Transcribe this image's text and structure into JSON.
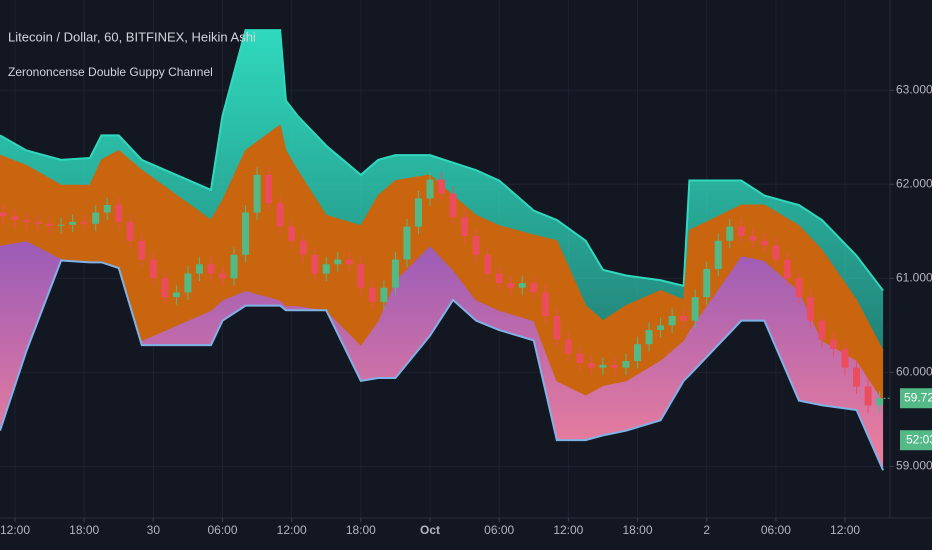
{
  "chart_data": {
    "type": "candlestick",
    "title": "Litecoin / Dollar, 60, BITFINEX, Heikin Ashi",
    "subtitle": "Zerononcense Double Guppy Channel",
    "up_color": "#53b987",
    "down_color": "#eb4d5c",
    "grid": true,
    "xlim": [
      -1.3,
      75.9
    ],
    "ylim": [
      58.43,
      63.96
    ],
    "yticks": [
      {
        "value": 63,
        "label": "63.000"
      },
      {
        "value": 62,
        "label": "62.000"
      },
      {
        "value": 61,
        "label": "61.000"
      },
      {
        "value": 60,
        "label": "60.000"
      },
      {
        "value": 59,
        "label": "59.000"
      }
    ],
    "xticks": [
      {
        "value": 0,
        "label": "12:00"
      },
      {
        "value": 6,
        "label": "18:00"
      },
      {
        "value": 12,
        "label": "30"
      },
      {
        "value": 18,
        "label": "06:00"
      },
      {
        "value": 24,
        "label": "12:00"
      },
      {
        "value": 30,
        "label": "18:00"
      },
      {
        "value": 36,
        "label": "Oct"
      },
      {
        "value": 42,
        "label": "06:00"
      },
      {
        "value": 48,
        "label": "12:00"
      },
      {
        "value": 54,
        "label": "18:00"
      },
      {
        "value": 60,
        "label": "2"
      },
      {
        "value": 66,
        "label": "06:00"
      },
      {
        "value": 72,
        "label": "12:00"
      }
    ],
    "last_price": 59.725,
    "countdown": "52:03",
    "x": [
      -1,
      0,
      1,
      2,
      3,
      4,
      5,
      6,
      7,
      8,
      9,
      10,
      11,
      12,
      13,
      14,
      15,
      16,
      17,
      18,
      19,
      20,
      21,
      22,
      23,
      24,
      25,
      26,
      27,
      28,
      29,
      30,
      31,
      32,
      33,
      34,
      35,
      36,
      37,
      38,
      39,
      40,
      41,
      42,
      43,
      44,
      45,
      46,
      47,
      48,
      49,
      50,
      51,
      52,
      53,
      54,
      55,
      56,
      57,
      58,
      59,
      60,
      61,
      62,
      63,
      64,
      65,
      66,
      67,
      68,
      69,
      70,
      71,
      72,
      73,
      74,
      75
    ],
    "ohlc": [
      [
        61.7,
        61.78,
        61.58,
        61.66
      ],
      [
        61.66,
        61.74,
        61.54,
        61.62
      ],
      [
        61.62,
        61.7,
        61.52,
        61.6
      ],
      [
        61.6,
        61.68,
        61.5,
        61.58
      ],
      [
        61.58,
        61.66,
        61.48,
        61.56
      ],
      [
        61.56,
        61.65,
        61.48,
        61.57
      ],
      [
        61.57,
        61.68,
        61.49,
        61.6
      ],
      [
        61.6,
        61.68,
        61.5,
        61.58
      ],
      [
        61.58,
        61.78,
        61.5,
        61.7
      ],
      [
        61.7,
        61.86,
        61.62,
        61.78
      ],
      [
        61.78,
        61.86,
        61.52,
        61.6
      ],
      [
        61.6,
        61.68,
        61.32,
        61.4
      ],
      [
        61.4,
        61.48,
        61.12,
        61.2
      ],
      [
        61.2,
        61.28,
        60.92,
        61.0
      ],
      [
        61.0,
        61.08,
        60.72,
        60.8
      ],
      [
        60.8,
        60.93,
        60.72,
        60.85
      ],
      [
        60.85,
        61.13,
        60.77,
        61.05
      ],
      [
        61.05,
        61.23,
        60.97,
        61.15
      ],
      [
        61.15,
        61.23,
        60.97,
        61.05
      ],
      [
        61.05,
        61.13,
        60.92,
        61.0
      ],
      [
        61.0,
        61.33,
        60.92,
        61.25
      ],
      [
        61.25,
        61.78,
        61.17,
        61.7
      ],
      [
        61.7,
        62.18,
        61.62,
        62.1
      ],
      [
        62.1,
        62.18,
        61.72,
        61.8
      ],
      [
        61.8,
        61.88,
        61.47,
        61.55
      ],
      [
        61.55,
        61.63,
        61.32,
        61.4
      ],
      [
        61.4,
        61.48,
        61.17,
        61.25
      ],
      [
        61.25,
        61.33,
        60.97,
        61.05
      ],
      [
        61.05,
        61.23,
        60.97,
        61.15
      ],
      [
        61.15,
        61.28,
        61.07,
        61.2
      ],
      [
        61.2,
        61.28,
        61.07,
        61.15
      ],
      [
        61.15,
        61.23,
        60.82,
        60.9
      ],
      [
        60.9,
        60.98,
        60.67,
        60.75
      ],
      [
        60.75,
        60.98,
        60.67,
        60.9
      ],
      [
        60.9,
        61.28,
        60.82,
        61.2
      ],
      [
        61.2,
        61.63,
        61.12,
        61.55
      ],
      [
        61.55,
        61.93,
        61.47,
        61.85
      ],
      [
        61.85,
        62.13,
        61.77,
        62.05
      ],
      [
        62.05,
        62.13,
        61.82,
        61.9
      ],
      [
        61.9,
        61.98,
        61.57,
        61.65
      ],
      [
        61.65,
        61.73,
        61.37,
        61.45
      ],
      [
        61.45,
        61.53,
        61.17,
        61.25
      ],
      [
        61.25,
        61.33,
        60.97,
        61.05
      ],
      [
        61.05,
        61.13,
        60.87,
        60.95
      ],
      [
        60.95,
        61.03,
        60.82,
        60.9
      ],
      [
        60.9,
        61.03,
        60.82,
        60.95
      ],
      [
        60.95,
        61.03,
        60.77,
        60.85
      ],
      [
        60.85,
        60.93,
        60.52,
        60.6
      ],
      [
        60.6,
        60.68,
        60.27,
        60.35
      ],
      [
        60.35,
        60.43,
        60.12,
        60.2
      ],
      [
        60.2,
        60.28,
        60.02,
        60.1
      ],
      [
        60.1,
        60.18,
        59.97,
        60.05
      ],
      [
        60.05,
        60.16,
        59.97,
        60.08
      ],
      [
        60.08,
        60.16,
        59.97,
        60.05
      ],
      [
        60.05,
        60.2,
        59.97,
        60.12
      ],
      [
        60.12,
        60.38,
        60.04,
        60.3
      ],
      [
        60.3,
        60.53,
        60.22,
        60.45
      ],
      [
        60.45,
        60.58,
        60.37,
        60.5
      ],
      [
        60.5,
        60.68,
        60.42,
        60.6
      ],
      [
        60.6,
        60.68,
        60.47,
        60.55
      ],
      [
        60.55,
        60.88,
        60.47,
        60.8
      ],
      [
        60.8,
        61.18,
        60.72,
        61.1
      ],
      [
        61.1,
        61.48,
        61.02,
        61.4
      ],
      [
        61.4,
        61.63,
        61.32,
        61.55
      ],
      [
        61.55,
        61.63,
        61.37,
        61.45
      ],
      [
        61.45,
        61.53,
        61.32,
        61.4
      ],
      [
        61.4,
        61.48,
        61.27,
        61.35
      ],
      [
        61.35,
        61.43,
        61.12,
        61.2
      ],
      [
        61.2,
        61.28,
        60.92,
        61.0
      ],
      [
        61.0,
        61.08,
        60.72,
        60.8
      ],
      [
        60.8,
        60.88,
        60.47,
        60.55
      ],
      [
        60.55,
        60.63,
        60.27,
        60.35
      ],
      [
        60.35,
        60.43,
        60.17,
        60.25
      ],
      [
        60.25,
        60.33,
        59.97,
        60.05
      ],
      [
        60.05,
        60.13,
        59.77,
        59.85
      ],
      [
        59.85,
        59.93,
        59.57,
        59.65
      ],
      [
        59.65,
        59.8,
        59.57,
        59.725
      ]
    ],
    "bands": {
      "x": [
        -1.3,
        1,
        4,
        6.5,
        7.5,
        9,
        11,
        17,
        18,
        20,
        23,
        23.5,
        24.5,
        27,
        30,
        31.5,
        33,
        36,
        38,
        40,
        42,
        45,
        47,
        49.5,
        51,
        53,
        56,
        58,
        58.5,
        63,
        65,
        68,
        70,
        73,
        75.3
      ],
      "upper": [
        62.52,
        62.36,
        62.26,
        62.28,
        62.52,
        62.52,
        62.26,
        61.94,
        62.73,
        63.64,
        63.64,
        62.89,
        62.73,
        62.41,
        62.1,
        62.26,
        62.31,
        62.31,
        62.23,
        62.15,
        62.04,
        61.72,
        61.62,
        61.4,
        61.09,
        61.03,
        60.98,
        60.92,
        62.04,
        62.04,
        61.88,
        61.78,
        61.62,
        61.24,
        60.87
      ],
      "orange_top": [
        62.31,
        62.2,
        61.99,
        61.99,
        62.26,
        62.36,
        62.15,
        61.62,
        61.83,
        62.36,
        62.63,
        62.36,
        62.15,
        61.67,
        61.56,
        61.88,
        62.04,
        62.1,
        61.88,
        61.67,
        61.56,
        61.46,
        61.4,
        60.71,
        60.55,
        60.71,
        60.87,
        60.77,
        61.51,
        61.78,
        61.78,
        61.56,
        61.3,
        60.77,
        60.23
      ],
      "orange_bottom": [
        61.35,
        61.4,
        61.21,
        61.17,
        61.17,
        61.11,
        60.34,
        60.66,
        60.77,
        60.87,
        60.77,
        60.71,
        60.71,
        60.66,
        60.29,
        60.55,
        60.98,
        61.35,
        61.09,
        60.77,
        60.66,
        60.55,
        59.91,
        59.76,
        59.86,
        59.91,
        60.13,
        60.34,
        60.45,
        61.24,
        61.19,
        60.87,
        60.34,
        60.13,
        59.7
      ],
      "lower": [
        59.38,
        60.23,
        61.19,
        61.17,
        61.17,
        61.11,
        60.29,
        60.29,
        60.55,
        60.71,
        60.71,
        60.66,
        60.66,
        60.66,
        59.91,
        59.94,
        59.94,
        60.39,
        60.77,
        60.55,
        60.45,
        60.34,
        59.28,
        59.28,
        59.33,
        59.38,
        59.49,
        59.91,
        59.97,
        60.55,
        60.55,
        59.7,
        59.65,
        59.6,
        58.96
      ],
      "upper_color": "#2fd9bd",
      "orange_color": "#c9650f",
      "lower_top_color": "#9a5bb8",
      "lower_bottom_color": "#f0809a",
      "lower_line_color": "#7fb2e5"
    }
  }
}
